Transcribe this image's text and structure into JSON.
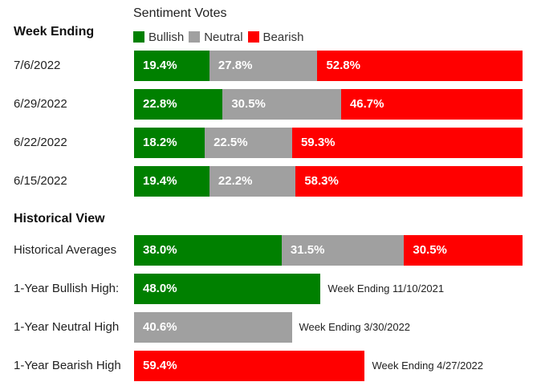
{
  "header": {
    "week_ending_label": "Week Ending",
    "historical_view_label": "Historical View"
  },
  "legend": {
    "title": "Sentiment Votes",
    "items": [
      {
        "label": "Bullish",
        "color": "#008000"
      },
      {
        "label": "Neutral",
        "color": "#a0a0a0"
      },
      {
        "label": "Bearish",
        "color": "#ff0000"
      }
    ]
  },
  "colors": {
    "bullish": "#008000",
    "neutral": "#a0a0a0",
    "bearish": "#ff0000"
  },
  "chart_data": {
    "type": "bar",
    "stacked": true,
    "orientation": "horizontal",
    "title": "Sentiment Votes",
    "categories": [
      "7/6/2022",
      "6/29/2022",
      "6/22/2022",
      "6/15/2022"
    ],
    "series": [
      {
        "name": "Bullish",
        "values": [
          19.4,
          22.8,
          18.2,
          19.4
        ],
        "labels": [
          "19.4%",
          "22.8%",
          "18.2%",
          "19.4%"
        ]
      },
      {
        "name": "Neutral",
        "values": [
          27.8,
          30.5,
          22.5,
          22.2
        ],
        "labels": [
          "27.8%",
          "30.5%",
          "22.5%",
          "22.2%"
        ]
      },
      {
        "name": "Bearish",
        "values": [
          52.8,
          46.7,
          59.3,
          58.3
        ],
        "labels": [
          "52.8%",
          "46.7%",
          "59.3%",
          "58.3%"
        ]
      }
    ],
    "historical_averages": {
      "label": "Historical Averages",
      "bullish": 38.0,
      "neutral": 31.5,
      "bearish": 30.5,
      "labels": [
        "38.0%",
        "31.5%",
        "30.5%"
      ]
    },
    "highs": [
      {
        "label": "1-Year Bullish High:",
        "value": 48.0,
        "value_label": "48.0%",
        "series": "bullish",
        "note": "Week Ending 11/10/2021"
      },
      {
        "label": "1-Year Neutral High",
        "value": 40.6,
        "value_label": "40.6%",
        "series": "neutral",
        "note": "Week Ending 3/30/2022"
      },
      {
        "label": "1-Year Bearish High",
        "value": 59.4,
        "value_label": "59.4%",
        "series": "bearish",
        "note": "Week Ending 4/27/2022"
      }
    ]
  }
}
